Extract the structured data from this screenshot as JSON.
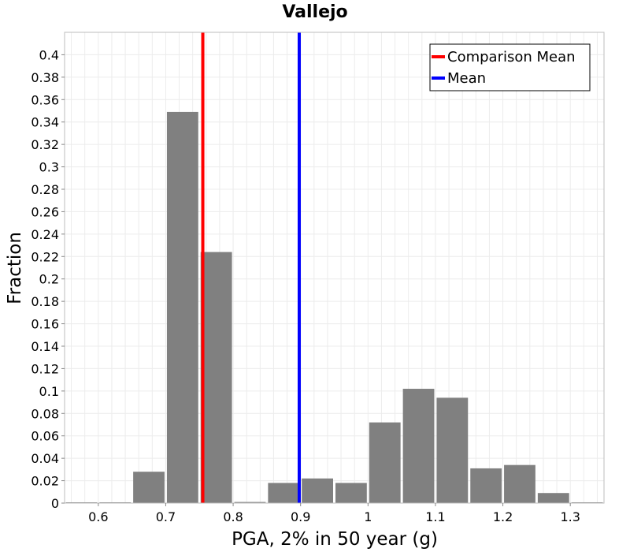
{
  "chart_data": {
    "type": "bar",
    "title": "Vallejo",
    "xlabel": "PGA, 2% in 50 year (g)",
    "ylabel": "Fraction",
    "xlim": [
      0.55,
      1.35
    ],
    "ylim": [
      0,
      0.42
    ],
    "grid": true,
    "bin_width": 0.05,
    "x_ticks": [
      "0.6",
      "0.7",
      "0.8",
      "0.9",
      "1",
      "1.1",
      "1.2",
      "1.3"
    ],
    "x_tick_values": [
      0.6,
      0.7,
      0.8,
      0.9,
      1.0,
      1.1,
      1.2,
      1.3
    ],
    "y_ticks": [
      "0",
      "0.02",
      "0.04",
      "0.06",
      "0.08",
      "0.1",
      "0.12",
      "0.14",
      "0.16",
      "0.18",
      "0.2",
      "0.22",
      "0.24",
      "0.26",
      "0.28",
      "0.3",
      "0.32",
      "0.34",
      "0.36",
      "0.38",
      "0.4"
    ],
    "y_tick_values": [
      0,
      0.02,
      0.04,
      0.06,
      0.08,
      0.1,
      0.12,
      0.14,
      0.16,
      0.18,
      0.2,
      0.22,
      0.24,
      0.26,
      0.28,
      0.3,
      0.32,
      0.34,
      0.36,
      0.38,
      0.4
    ],
    "bars": [
      {
        "x": 0.575,
        "value": 0.0
      },
      {
        "x": 0.625,
        "value": 0.0
      },
      {
        "x": 0.675,
        "value": 0.028
      },
      {
        "x": 0.725,
        "value": 0.349
      },
      {
        "x": 0.775,
        "value": 0.224
      },
      {
        "x": 0.825,
        "value": 0.001
      },
      {
        "x": 0.875,
        "value": 0.018
      },
      {
        "x": 0.925,
        "value": 0.022
      },
      {
        "x": 0.975,
        "value": 0.018
      },
      {
        "x": 1.025,
        "value": 0.072
      },
      {
        "x": 1.075,
        "value": 0.102
      },
      {
        "x": 1.125,
        "value": 0.094
      },
      {
        "x": 1.175,
        "value": 0.031
      },
      {
        "x": 1.225,
        "value": 0.034
      },
      {
        "x": 1.275,
        "value": 0.009
      },
      {
        "x": 1.325,
        "value": 0.0
      }
    ],
    "bar_color": "#808080",
    "vlines": [
      {
        "name": "Comparison Mean",
        "x": 0.755,
        "color": "#ff0000"
      },
      {
        "name": "Mean",
        "x": 0.898,
        "color": "#0000ff"
      }
    ],
    "legend": {
      "position": "top-right",
      "entries": [
        {
          "label": "Comparison Mean",
          "color": "#ff0000"
        },
        {
          "label": "Mean",
          "color": "#0000ff"
        }
      ]
    }
  }
}
